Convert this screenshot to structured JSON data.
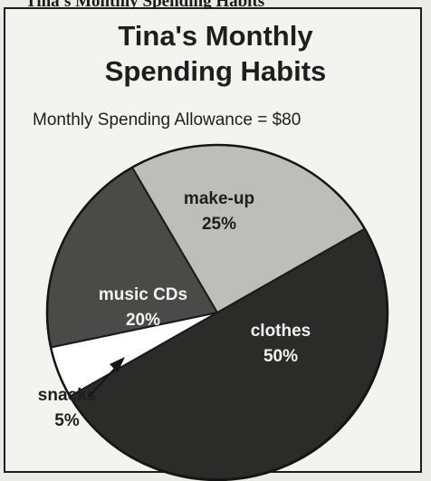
{
  "page": {
    "header_fragment": "Tina's Monthly Spending Habits"
  },
  "colors": {
    "make_up": "#bdbdb9",
    "music_cds": "#4a4a48",
    "clothes": "#2b2b29",
    "snacks": "#ffffff",
    "light_label": "#f2f2f0",
    "dark_label": "#1e1e1e"
  },
  "chart_data": {
    "type": "pie",
    "title_line1": "Tina's Monthly",
    "title_line2": "Spending Habits",
    "subtitle": "Monthly Spending Allowance = $80",
    "slices": [
      {
        "name": "clothes",
        "value": 50,
        "label": "clothes",
        "pct_label": "50%"
      },
      {
        "name": "snacks",
        "value": 5,
        "label": "snacks",
        "pct_label": "5%"
      },
      {
        "name": "music_cds",
        "value": 20,
        "label": "music CDs",
        "pct_label": "20%"
      },
      {
        "name": "make_up",
        "value": 25,
        "label": "make-up",
        "pct_label": "25%"
      }
    ]
  }
}
